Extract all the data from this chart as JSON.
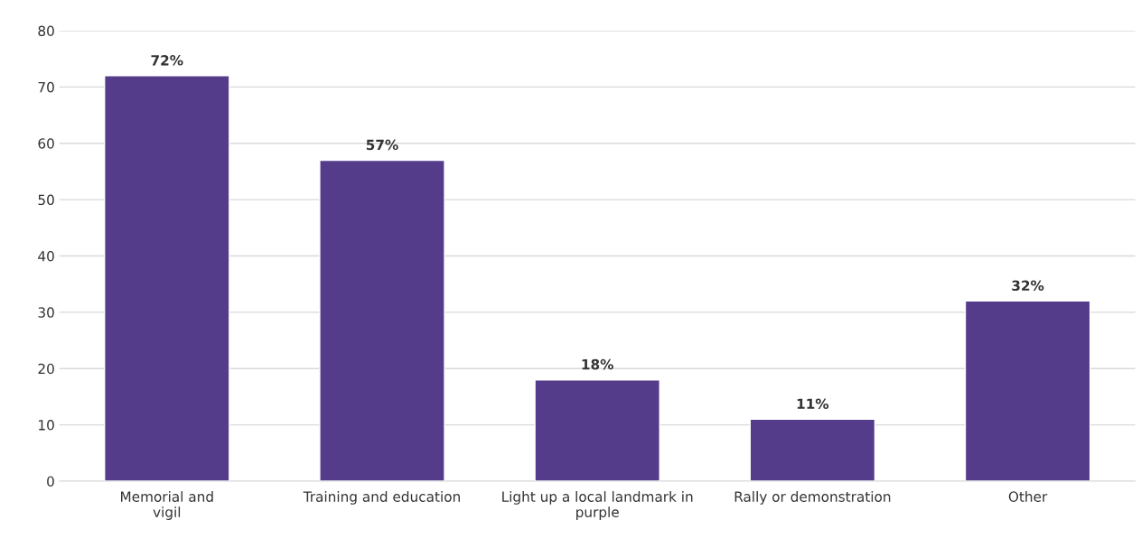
{
  "chart_data": {
    "type": "bar",
    "categories": [
      "Memorial and\nvigil",
      "Training and education",
      "Light up a local landmark in\npurple",
      "Rally or demonstration",
      "Other"
    ],
    "values": [
      72,
      57,
      18,
      11,
      32
    ],
    "value_labels": [
      "72%",
      "57%",
      "18%",
      "11%",
      "32%"
    ],
    "color": "#553c8b",
    "ylim": [
      0,
      80
    ],
    "yticks": [
      0,
      10,
      20,
      30,
      40,
      50,
      60,
      70,
      80
    ],
    "grid": "y",
    "legend": false
  }
}
